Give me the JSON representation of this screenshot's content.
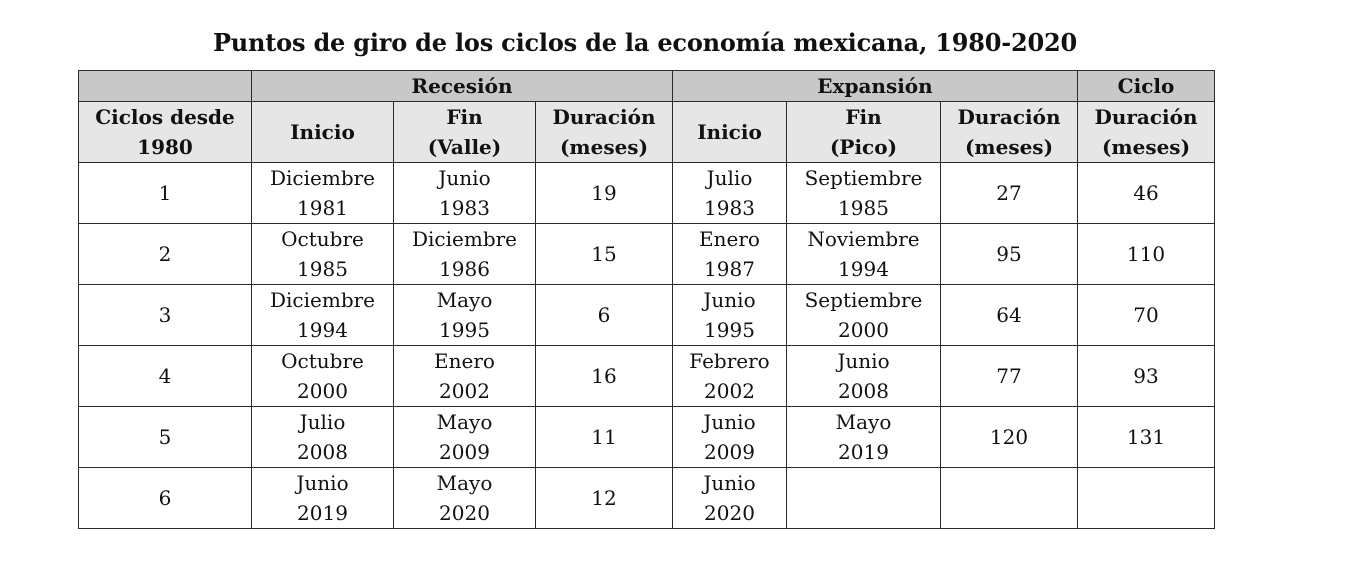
{
  "title": "Puntos de giro de los ciclos de la economía mexicana, 1980-2020",
  "groups": {
    "recesion": "Recesión",
    "expansion": "Expansión",
    "ciclo": "Ciclo"
  },
  "columns": {
    "ciclos": [
      "Ciclos desde",
      "1980"
    ],
    "rec_inicio": [
      "Inicio"
    ],
    "rec_fin": [
      "Fin",
      "(Valle)"
    ],
    "rec_duracion": [
      "Duración",
      "(meses)"
    ],
    "exp_inicio": [
      "Inicio"
    ],
    "exp_fin": [
      "Fin",
      "(Pico)"
    ],
    "exp_duracion": [
      "Duración",
      "(meses)"
    ],
    "ciclo_duracion": [
      "Duración",
      "(meses)"
    ]
  },
  "rows": [
    {
      "ciclo": "1",
      "rec_inicio": [
        "Diciembre",
        "1981"
      ],
      "rec_fin": [
        "Junio",
        "1983"
      ],
      "rec_duracion": "19",
      "exp_inicio": [
        "Julio",
        "1983"
      ],
      "exp_fin": [
        "Septiembre",
        "1985"
      ],
      "exp_duracion": "27",
      "ciclo_duracion": "46"
    },
    {
      "ciclo": "2",
      "rec_inicio": [
        "Octubre",
        "1985"
      ],
      "rec_fin": [
        "Diciembre",
        "1986"
      ],
      "rec_duracion": "15",
      "exp_inicio": [
        "Enero",
        "1987"
      ],
      "exp_fin": [
        "Noviembre",
        "1994"
      ],
      "exp_duracion": "95",
      "ciclo_duracion": "110"
    },
    {
      "ciclo": "3",
      "rec_inicio": [
        "Diciembre",
        "1994"
      ],
      "rec_fin": [
        "Mayo",
        "1995"
      ],
      "rec_duracion": "6",
      "exp_inicio": [
        "Junio",
        "1995"
      ],
      "exp_fin": [
        "Septiembre",
        "2000"
      ],
      "exp_duracion": "64",
      "ciclo_duracion": "70"
    },
    {
      "ciclo": "4",
      "rec_inicio": [
        "Octubre",
        "2000"
      ],
      "rec_fin": [
        "Enero",
        "2002"
      ],
      "rec_duracion": "16",
      "exp_inicio": [
        "Febrero",
        "2002"
      ],
      "exp_fin": [
        "Junio",
        "2008"
      ],
      "exp_duracion": "77",
      "ciclo_duracion": "93"
    },
    {
      "ciclo": "5",
      "rec_inicio": [
        "Julio",
        "2008"
      ],
      "rec_fin": [
        "Mayo",
        "2009"
      ],
      "rec_duracion": "11",
      "exp_inicio": [
        "Junio",
        "2009"
      ],
      "exp_fin": [
        "Mayo",
        "2019"
      ],
      "exp_duracion": "120",
      "ciclo_duracion": "131"
    },
    {
      "ciclo": "6",
      "rec_inicio": [
        "Junio",
        "2019"
      ],
      "rec_fin": [
        "Mayo",
        "2020"
      ],
      "rec_duracion": "12",
      "exp_inicio": [
        "Junio",
        "2020"
      ],
      "exp_fin": [],
      "exp_duracion": "",
      "ciclo_duracion": ""
    }
  ]
}
